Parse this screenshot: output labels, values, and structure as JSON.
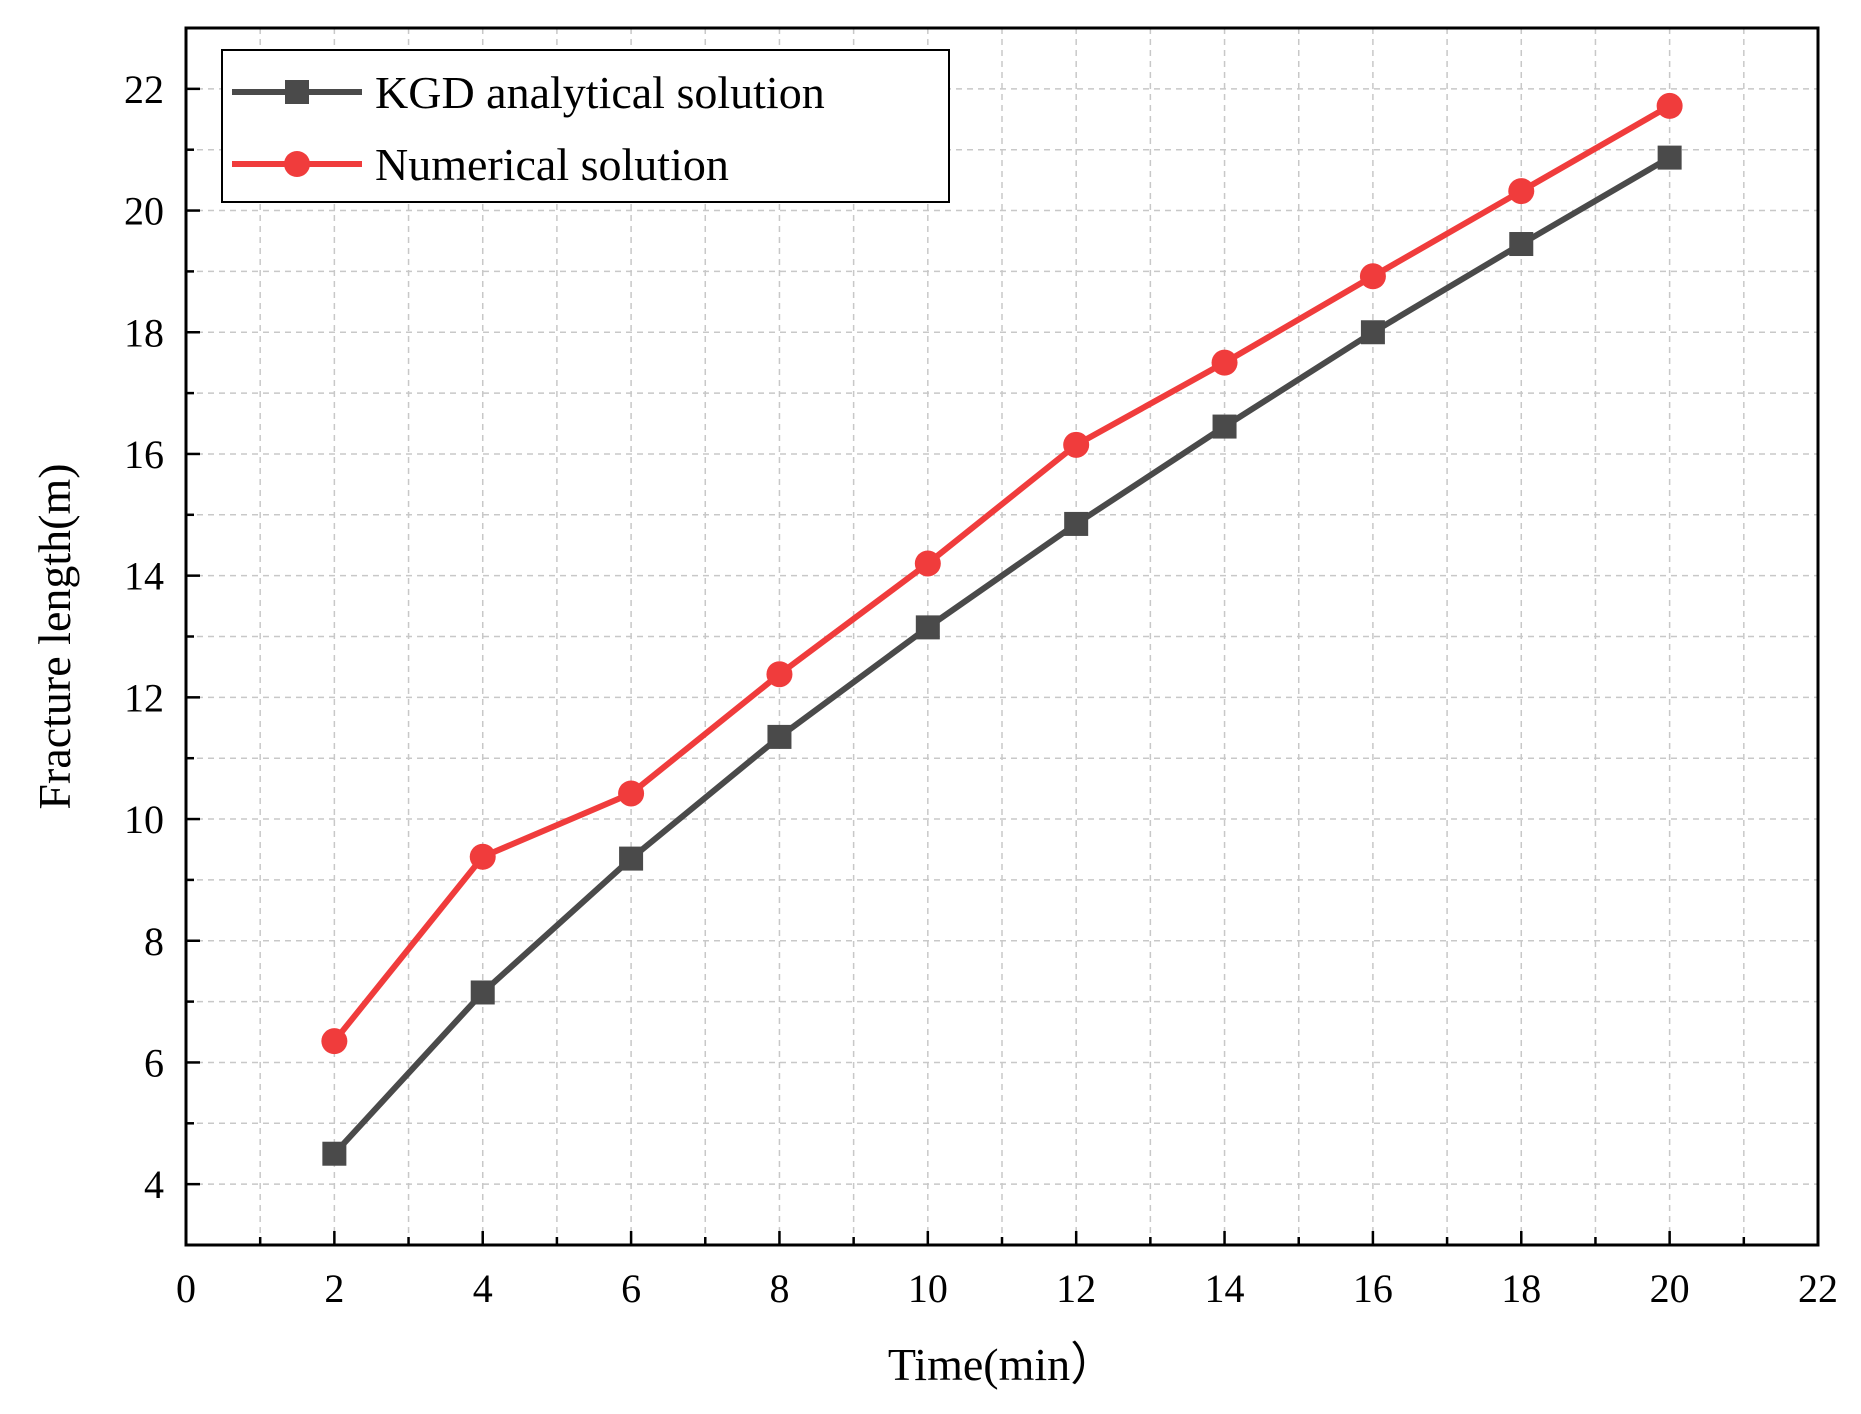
{
  "chart_data": {
    "type": "line",
    "title": "",
    "xlabel": "Time(min）",
    "ylabel": "Fracture length(m)",
    "xlim": [
      0,
      22
    ],
    "ylim": [
      3,
      23
    ],
    "xticks": [
      0,
      2,
      4,
      6,
      8,
      10,
      12,
      14,
      16,
      18,
      20,
      22
    ],
    "yticks": [
      4,
      6,
      8,
      10,
      12,
      14,
      16,
      18,
      20,
      22
    ],
    "grid": true,
    "legend_position": "top-left",
    "x": [
      2,
      4,
      6,
      8,
      10,
      12,
      14,
      16,
      18,
      20
    ],
    "series": [
      {
        "name": "KGD analytical solution",
        "marker": "square",
        "color": "#4a4a4a",
        "values": [
          4.5,
          7.15,
          9.35,
          11.35,
          13.15,
          14.85,
          16.45,
          18.0,
          19.45,
          20.87
        ]
      },
      {
        "name": "Numerical solution",
        "marker": "circle",
        "color": "#f03c3c",
        "values": [
          6.35,
          9.38,
          10.42,
          12.38,
          14.2,
          16.15,
          17.5,
          18.92,
          20.32,
          21.72
        ]
      }
    ]
  }
}
